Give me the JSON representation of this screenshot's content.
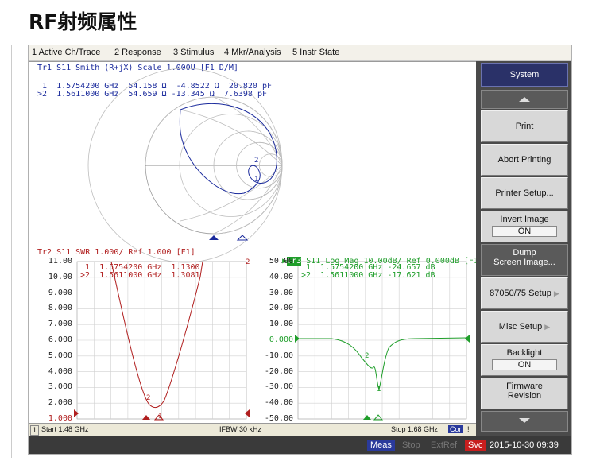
{
  "page_title": "RF射频属性",
  "menu": [
    "1 Active Ch/Trace",
    "2 Response",
    "3 Stimulus",
    "4 Mkr/Analysis",
    "5 Instr State"
  ],
  "smith": {
    "header": "Tr1 S11 Smith (R+jX) Scale 1.000U [F1 D/M]",
    "markers": [
      {
        "id": "1",
        "line": " 1  1.5754200 GHz  54.158 Ω  -4.8522 Ω  20.820 pF"
      },
      {
        "id": "2",
        "line": ">2  1.5611000 GHz  54.659 Ω -13.345 Ω  7.6398 pF"
      }
    ],
    "color": "#1a2a9c"
  },
  "swr": {
    "header": "Tr2 S11 SWR 1.000/ Ref 1.000 [F1]",
    "yticks": [
      "11.00",
      "10.00",
      "9.000",
      "8.000",
      "7.000",
      "6.000",
      "5.000",
      "4.000",
      "3.000",
      "2.000",
      "1.000"
    ],
    "markers": [
      {
        "id": "1",
        "line": " 1  1.5754200 GHz  1.1300"
      },
      {
        "id": "2",
        "line": ">2  1.5611000 GHz  1.3081"
      }
    ],
    "color": "#b01e1e"
  },
  "logmag": {
    "header_tag": "Tr3",
    "header": " S11 Log Mag 10.00dB/ Ref 0.000dB [F1]",
    "yticks": [
      "50.00",
      "40.00",
      "30.00",
      "20.00",
      "10.00",
      "0.000",
      "-10.00",
      "-20.00",
      "-30.00",
      "-40.00",
      "-50.00"
    ],
    "markers": [
      {
        "id": "1",
        "line": " 1  1.5754200 GHz -24.657 dB"
      },
      {
        "id": "2",
        "line": ">2  1.5611000 GHz -17.621 dB"
      }
    ],
    "color": "#1f9e2a"
  },
  "status": {
    "channel": "1",
    "start": "Start 1.48 GHz",
    "ifbw": "IFBW 30 kHz",
    "stop": "Stop 1.68 GHz",
    "cor": "Cor",
    "flag": "!"
  },
  "bottom": {
    "meas": "Meas",
    "stop": "Stop",
    "extref": "ExtRef",
    "svc": "Svc",
    "datetime": "2015-10-30 09:39"
  },
  "softkeys": {
    "system": "System",
    "print": "Print",
    "abort": "Abort Printing",
    "printer_setup": "Printer Setup...",
    "invert_label": "Invert Image",
    "invert_value": "ON",
    "dump_line1": "Dump",
    "dump_line2": "Screen Image...",
    "std": "87050/75 Setup",
    "misc": "Misc Setup",
    "backlight_label": "Backlight",
    "backlight_value": "ON",
    "firmware_line1": "Firmware",
    "firmware_line2": "Revision"
  }
}
